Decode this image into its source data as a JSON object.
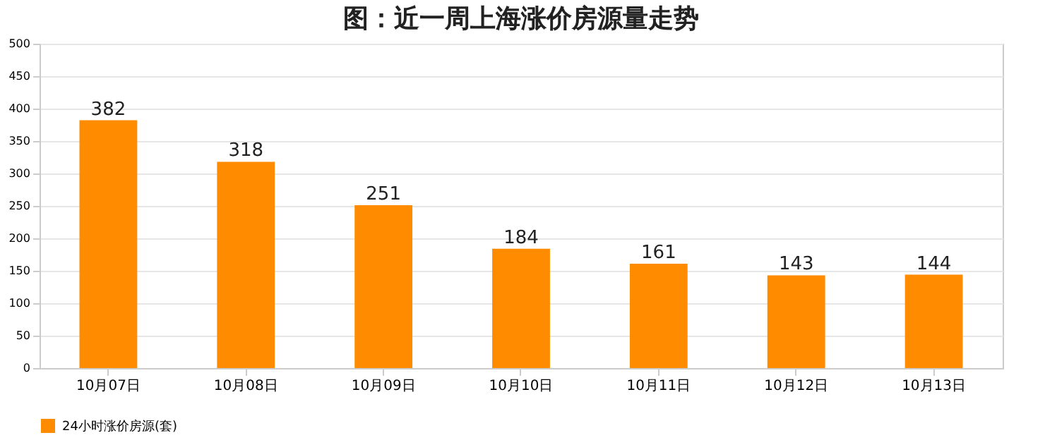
{
  "chart_data": {
    "type": "bar",
    "title": "图：近一周上海涨价房源量走势",
    "categories": [
      "10月07日",
      "10月08日",
      "10月09日",
      "10月10日",
      "10月11日",
      "10月12日",
      "10月13日"
    ],
    "series": [
      {
        "name": "24小时涨价房源(套)",
        "color": "#ff8c00",
        "values": [
          382,
          318,
          251,
          184,
          161,
          143,
          144
        ]
      }
    ],
    "ylim": [
      0,
      500
    ],
    "yticks": [
      0,
      50,
      100,
      150,
      200,
      250,
      300,
      350,
      400,
      450,
      500
    ],
    "grid": "y",
    "legend": "bottom",
    "data_labels": true
  }
}
